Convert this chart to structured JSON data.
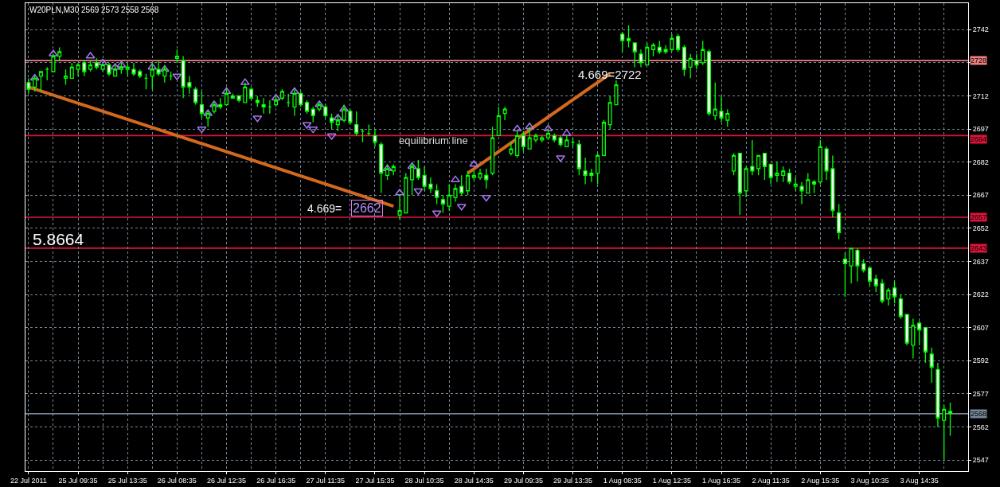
{
  "chart_data": {
    "type": "candlestick",
    "title": "W20PLN,M30 2569 2573 2558 2568",
    "categories": [
      "22 Jul 2011",
      null,
      null,
      null,
      null,
      null,
      null,
      null,
      "25 Jul 09:35",
      null,
      null,
      null,
      null,
      null,
      null,
      null,
      "25 Jul 13:35",
      null,
      null,
      null,
      null,
      null,
      null,
      null,
      "26 Jul 08:35",
      null,
      null,
      null,
      null,
      null,
      null,
      null,
      "26 Jul 12:35",
      null,
      null,
      null,
      null,
      null,
      null,
      null,
      "26 Jul 16:35",
      null,
      null,
      null,
      null,
      null,
      null,
      null,
      "27 Jul 11:35",
      null,
      null,
      null,
      null,
      null,
      null,
      null,
      "27 Jul 15:35",
      null,
      null,
      null,
      null,
      null,
      null,
      null,
      "28 Jul 10:35",
      null,
      null,
      null,
      null,
      null,
      null,
      null,
      "28 Jul 14:35",
      null,
      null,
      null,
      null,
      null,
      null,
      null,
      "29 Jul 09:35",
      null,
      null,
      null,
      null,
      null,
      null,
      null,
      "29 Jul 13:35",
      null,
      null,
      null,
      null,
      null,
      null,
      null,
      "1 Aug 08:35",
      null,
      null,
      null,
      null,
      null,
      null,
      null,
      "1 Aug 12:35",
      null,
      null,
      null,
      null,
      null,
      null,
      null,
      "1 Aug 16:35",
      null,
      null,
      null,
      null,
      null,
      null,
      null,
      "2 Aug 11:35",
      null,
      null,
      null,
      null,
      null,
      null,
      null,
      "2 Aug 15:35",
      null,
      null,
      null,
      null,
      null,
      null,
      null,
      "3 Aug 10:35",
      null,
      null,
      null,
      null,
      null,
      null,
      null,
      "3 Aug 14:35",
      null,
      null,
      null,
      null,
      null
    ],
    "ohlc": [
      [
        2718,
        2720,
        2713,
        2715
      ],
      [
        2716,
        2721,
        2714,
        2720
      ],
      [
        2721,
        2723,
        2714,
        2723
      ],
      [
        2724,
        2725,
        2719,
        2724
      ],
      [
        2723,
        2731,
        2723,
        2730
      ],
      [
        2730,
        2734,
        2728,
        2732
      ],
      [
        2720,
        2724,
        2717,
        2721
      ],
      [
        2720,
        2727,
        2720,
        2725
      ],
      [
        2724,
        2727,
        2721,
        2726
      ],
      [
        2727,
        2728,
        2721,
        2723
      ],
      [
        2724,
        2728,
        2723,
        2726
      ],
      [
        2727,
        2729,
        2724,
        2725
      ],
      [
        2724,
        2727,
        2723,
        2726
      ],
      [
        2726,
        2727,
        2721,
        2722
      ],
      [
        2721,
        2726,
        2721,
        2724
      ],
      [
        2724,
        2727,
        2722,
        2725
      ],
      [
        2724,
        2727,
        2721,
        2725
      ],
      [
        2724,
        2727,
        2721,
        2722
      ],
      [
        2723,
        2724,
        2720,
        2721
      ],
      [
        2720,
        2722,
        2715,
        2720
      ],
      [
        2721,
        2727,
        2715,
        2724
      ],
      [
        2724,
        2728,
        2721,
        2722
      ],
      [
        2721,
        2726,
        2718,
        2724
      ],
      [
        2721,
        2723,
        2719,
        2721
      ],
      [
        2729,
        2733,
        2727,
        2730
      ],
      [
        2728,
        2730,
        2711,
        2716
      ],
      [
        2718,
        2721,
        2713,
        2716
      ],
      [
        2715,
        2716,
        2708,
        2709
      ],
      [
        2708,
        2714,
        2702,
        2704
      ],
      [
        2702,
        2705,
        2698,
        2704
      ],
      [
        2705,
        2709,
        2704,
        2708
      ],
      [
        2708,
        2711,
        2706,
        2707
      ],
      [
        2708,
        2715,
        2708,
        2713
      ],
      [
        2712,
        2713,
        2711,
        2711
      ],
      [
        2712,
        2712,
        2709,
        2710
      ],
      [
        2709,
        2718,
        2709,
        2716
      ],
      [
        2715,
        2716,
        2710,
        2711
      ],
      [
        2710,
        2712,
        2707,
        2709
      ],
      [
        2708,
        2711,
        2704,
        2707
      ],
      [
        2707,
        2710,
        2704,
        2707
      ],
      [
        2708,
        2712,
        2707,
        2710
      ],
      [
        2711,
        2715,
        2710,
        2714
      ],
      [
        2709,
        2713,
        2707,
        2709
      ],
      [
        2707,
        2715,
        2703,
        2713
      ],
      [
        2713,
        2714,
        2707,
        2708
      ],
      [
        2709,
        2710,
        2704,
        2705
      ],
      [
        2706,
        2707,
        2700,
        2703
      ],
      [
        2706,
        2709,
        2705,
        2708
      ],
      [
        2707,
        2708,
        2702,
        2703
      ],
      [
        2702,
        2704,
        2697,
        2700
      ],
      [
        2699,
        2703,
        2696,
        2701
      ],
      [
        2701,
        2708,
        2700,
        2706
      ],
      [
        2705,
        2706,
        2699,
        2700
      ],
      [
        2699,
        2705,
        2694,
        2695
      ],
      [
        2696,
        2697,
        2691,
        2696
      ],
      [
        2695,
        2699,
        2694,
        2695
      ],
      [
        2694,
        2697,
        2689,
        2691
      ],
      [
        2690,
        2691,
        2668,
        2677
      ],
      [
        2676,
        2681,
        2674,
        2679
      ],
      [
        2678,
        2681,
        2676,
        2680
      ],
      [
        2658,
        2667,
        2656,
        2660
      ],
      [
        2659,
        2677,
        2659,
        2675
      ],
      [
        2674,
        2681,
        2667,
        2680
      ],
      [
        2679,
        2683,
        2674,
        2675
      ],
      [
        2676,
        2680,
        2669,
        2671
      ],
      [
        2672,
        2675,
        2668,
        2670
      ],
      [
        2669,
        2672,
        2663,
        2666
      ],
      [
        2665,
        2667,
        2659,
        2663
      ],
      [
        2662,
        2672,
        2660,
        2667
      ],
      [
        2666,
        2672,
        2664,
        2670
      ],
      [
        2671,
        2676,
        2667,
        2668
      ],
      [
        2669,
        2678,
        2667,
        2676
      ],
      [
        2675,
        2678,
        2674,
        2676
      ],
      [
        2675,
        2679,
        2674,
        2677
      ],
      [
        2676,
        2679,
        2670,
        2674
      ],
      [
        2677,
        2698,
        2676,
        2693
      ],
      [
        2694,
        2707,
        2694,
        2703
      ],
      [
        2704,
        2707,
        2701,
        2706
      ],
      [
        2686,
        2691,
        2685,
        2688
      ],
      [
        2685,
        2696,
        2684,
        2694
      ],
      [
        2694,
        2696,
        2687,
        2689
      ],
      [
        2688,
        2698,
        2688,
        2693
      ],
      [
        2692,
        2695,
        2691,
        2694
      ],
      [
        2692,
        2694,
        2691,
        2693
      ],
      [
        2693,
        2697,
        2692,
        2695
      ],
      [
        2694,
        2695,
        2691,
        2692
      ],
      [
        2693,
        2694,
        2689,
        2690
      ],
      [
        2689,
        2694,
        2689,
        2692
      ],
      [
        2691,
        2693,
        2689,
        2691
      ],
      [
        2690,
        2692,
        2676,
        2679
      ],
      [
        2678,
        2684,
        2672,
        2676
      ],
      [
        2677,
        2679,
        2673,
        2676
      ],
      [
        2677,
        2686,
        2672,
        2685
      ],
      [
        2685,
        2701,
        2685,
        2700
      ],
      [
        2699,
        2712,
        2697,
        2709
      ],
      [
        2708,
        2719,
        2708,
        2717
      ],
      [
        2740,
        2741,
        2732,
        2737
      ],
      [
        2738,
        2744,
        2734,
        2737
      ],
      [
        2736,
        2736,
        2725,
        2732
      ],
      [
        2731,
        2733,
        2725,
        2727
      ],
      [
        2726,
        2736,
        2726,
        2734
      ],
      [
        2733,
        2736,
        2730,
        2735
      ],
      [
        2734,
        2737,
        2731,
        2732
      ],
      [
        2733,
        2735,
        2731,
        2732
      ],
      [
        2733,
        2740,
        2732,
        2738
      ],
      [
        2739,
        2740,
        2732,
        2733
      ],
      [
        2734,
        2735,
        2721,
        2724
      ],
      [
        2725,
        2731,
        2720,
        2729
      ],
      [
        2728,
        2731,
        2724,
        2726
      ],
      [
        2727,
        2737,
        2726,
        2733
      ],
      [
        2732,
        2733,
        2703,
        2704
      ],
      [
        2703,
        2718,
        2701,
        2706
      ],
      [
        2705,
        2712,
        2700,
        2702
      ],
      [
        2701,
        2706,
        2698,
        2704
      ],
      [
        2678,
        2686,
        2676,
        2685
      ],
      [
        2686,
        2686,
        2658,
        2668
      ],
      [
        2669,
        2680,
        2666,
        2679
      ],
      [
        2680,
        2692,
        2676,
        2678
      ],
      [
        2679,
        2685,
        2676,
        2685
      ],
      [
        2686,
        2686,
        2674,
        2680
      ],
      [
        2681,
        2681,
        2672,
        2675
      ],
      [
        2676,
        2682,
        2673,
        2677
      ],
      [
        2676,
        2680,
        2673,
        2678
      ],
      [
        2677,
        2679,
        2672,
        2673
      ],
      [
        2671,
        2675,
        2669,
        2672
      ],
      [
        2671,
        2673,
        2663,
        2669
      ],
      [
        2668,
        2677,
        2668,
        2674
      ],
      [
        2673,
        2674,
        2668,
        2672
      ],
      [
        2673,
        2692,
        2672,
        2689
      ],
      [
        2688,
        2689,
        2674,
        2678
      ],
      [
        2679,
        2685,
        2657,
        2660
      ],
      [
        2659,
        2663,
        2647,
        2650
      ],
      [
        2638,
        2641,
        2621,
        2636
      ],
      [
        2635,
        2643,
        2627,
        2643
      ],
      [
        2642,
        2643,
        2628,
        2635
      ],
      [
        2636,
        2638,
        2632,
        2633
      ],
      [
        2634,
        2635,
        2626,
        2628
      ],
      [
        2629,
        2631,
        2623,
        2626
      ],
      [
        2627,
        2629,
        2618,
        2619
      ],
      [
        2620,
        2625,
        2617,
        2624
      ],
      [
        2625,
        2628,
        2618,
        2621
      ],
      [
        2620,
        2622,
        2611,
        2612
      ],
      [
        2613,
        2613,
        2599,
        2600
      ],
      [
        2599,
        2611,
        2593,
        2608
      ],
      [
        2609,
        2610,
        2599,
        2606
      ],
      [
        2607,
        2607,
        2591,
        2596
      ],
      [
        2595,
        2598,
        2582,
        2589
      ],
      [
        2588,
        2591,
        2562,
        2566
      ],
      [
        2565,
        2572,
        2547,
        2570
      ],
      [
        2569,
        2573,
        2558,
        2568
      ]
    ],
    "color": "#00ff00",
    "series": [
      {
        "type": "line",
        "color": "#d2691e",
        "values": [
          2716,
          null,
          null,
          null,
          null,
          null,
          null,
          null,
          null,
          null,
          null,
          null,
          null,
          null,
          null,
          null,
          null,
          null,
          null,
          null,
          null,
          null,
          null,
          null,
          null,
          null,
          null,
          null,
          null,
          null,
          null,
          null,
          null,
          null,
          null,
          null,
          null,
          null,
          null,
          null,
          null,
          null,
          null,
          null,
          null,
          null,
          null,
          null,
          null,
          null,
          null,
          null,
          null,
          null,
          null,
          null,
          null,
          null,
          null,
          2662,
          null,
          null,
          null,
          null,
          null,
          null,
          null,
          null,
          null,
          null,
          null,
          null,
          null,
          null,
          null,
          null,
          null,
          null,
          null,
          null,
          null,
          null,
          null,
          null,
          null,
          null,
          null,
          null,
          null,
          null,
          null,
          null,
          null,
          null,
          null,
          null,
          null,
          null,
          null,
          null,
          null,
          null,
          null,
          null,
          null,
          null,
          null,
          null,
          null,
          null,
          null,
          null,
          null,
          null,
          null,
          null,
          null,
          null,
          null,
          null,
          null,
          null,
          null,
          null,
          null,
          null,
          null,
          null,
          null,
          null,
          null,
          null,
          null,
          null,
          null,
          null,
          null,
          null,
          null,
          null,
          null,
          null,
          null,
          null,
          null,
          null,
          null,
          null,
          null,
          null
        ]
      },
      {
        "type": "line",
        "color": "#d2691e",
        "values": [
          null,
          null,
          null,
          null,
          null,
          null,
          null,
          null,
          null,
          null,
          null,
          null,
          null,
          null,
          null,
          null,
          null,
          null,
          null,
          null,
          null,
          null,
          null,
          null,
          null,
          null,
          null,
          null,
          null,
          null,
          null,
          null,
          null,
          null,
          null,
          null,
          null,
          null,
          null,
          null,
          null,
          null,
          null,
          null,
          null,
          null,
          null,
          null,
          null,
          null,
          null,
          null,
          null,
          null,
          null,
          null,
          null,
          null,
          null,
          null,
          null,
          null,
          null,
          null,
          null,
          null,
          null,
          null,
          null,
          null,
          null,
          2677,
          null,
          null,
          null,
          null,
          null,
          null,
          null,
          null,
          null,
          null,
          null,
          null,
          null,
          null,
          null,
          null,
          null,
          null,
          null,
          null,
          null,
          null,
          2722,
          null,
          null,
          null,
          null,
          null,
          null,
          null,
          null,
          null,
          null,
          null,
          null,
          null,
          null,
          null,
          null,
          null,
          null,
          null,
          null,
          null,
          null,
          null,
          null,
          null,
          null,
          null,
          null,
          null,
          null,
          null,
          null,
          null,
          null,
          null,
          null,
          null,
          null,
          null,
          null,
          null,
          null,
          null,
          null,
          null,
          null,
          null,
          null,
          null,
          null,
          null,
          null,
          null,
          null,
          null
        ]
      },
      {
        "type": "scatter",
        "marker": "triangle",
        "color": "#a678f0",
        "values": [
          null,
          2720,
          null,
          null,
          2731,
          null,
          null,
          null,
          null,
          null,
          2730,
          null,
          2727,
          null,
          2725,
          2726,
          null,
          null,
          null,
          null,
          2725,
          null,
          2724,
          null,
          null,
          null,
          null,
          null,
          null,
          2704,
          2708,
          null,
          2714,
          null,
          null,
          2718,
          null,
          null,
          null,
          null,
          2711,
          null,
          null,
          2714,
          null,
          null,
          null,
          2708,
          null,
          null,
          2702,
          2706,
          null,
          null,
          null,
          null,
          null,
          null,
          2679,
          null,
          2668,
          null,
          2680,
          null,
          null,
          null,
          null,
          null,
          null,
          2674,
          null,
          null,
          2681,
          null,
          null,
          null,
          null,
          null,
          null,
          2697,
          null,
          2698,
          null,
          null,
          2697,
          null,
          null,
          2695,
          null,
          null,
          null,
          null,
          null,
          null,
          null,
          null,
          null,
          null,
          null,
          null,
          null,
          null,
          null,
          null,
          null,
          null,
          null,
          null,
          null,
          null,
          null,
          null,
          null,
          null,
          null,
          null,
          null,
          null,
          null,
          null,
          null,
          null,
          null,
          null,
          null,
          null,
          null,
          null,
          null,
          null,
          null,
          null,
          null,
          null,
          null,
          null,
          null,
          null,
          null,
          null,
          null,
          null,
          null,
          null,
          null,
          null,
          null,
          null,
          null,
          null
        ]
      },
      {
        "type": "scatter",
        "marker": "triangle",
        "color": "#a678f0",
        "values": [
          null,
          null,
          null,
          null,
          null,
          null,
          null,
          null,
          null,
          null,
          null,
          null,
          null,
          null,
          null,
          null,
          null,
          null,
          null,
          null,
          null,
          null,
          null,
          null,
          2721,
          null,
          null,
          null,
          2697,
          null,
          null,
          null,
          null,
          null,
          null,
          null,
          null,
          2702,
          null,
          null,
          null,
          null,
          null,
          null,
          null,
          2699,
          2697,
          null,
          null,
          2694,
          null,
          null,
          null,
          null,
          null,
          null,
          null,
          null,
          null,
          null,
          null,
          null,
          null,
          2669,
          null,
          null,
          2659,
          null,
          null,
          null,
          2662,
          null,
          null,
          null,
          2666,
          null,
          null,
          null,
          null,
          null,
          null,
          null,
          null,
          null,
          null,
          null,
          2684,
          null,
          null,
          null,
          null,
          null,
          null,
          null,
          null,
          null,
          null,
          null,
          null,
          null,
          null,
          null,
          null,
          null,
          null,
          null,
          null,
          null,
          null,
          null,
          null,
          null,
          null,
          null,
          null,
          null,
          null,
          null,
          null,
          null,
          null,
          null,
          null,
          null,
          null,
          null,
          null,
          null,
          null,
          null,
          null,
          null,
          null,
          null,
          null,
          null,
          null,
          null,
          null,
          null,
          null,
          null,
          null,
          null,
          null,
          null,
          null,
          null,
          null,
          null
        ]
      }
    ],
    "ylim": [
      2542,
      2754
    ],
    "yticks": [
      2547,
      2562,
      2577,
      2592,
      2607,
      2622,
      2637,
      2652,
      2667,
      2682,
      2697,
      2712,
      {
        "value": 2727,
        "label": null
      },
      2742
    ],
    "grid": true,
    "ref_lines": [
      {
        "axis": "y",
        "value": 2728,
        "label": "2728",
        "color": "#f08080"
      },
      {
        "axis": "y",
        "value": 2694,
        "label": "2694",
        "color": "#dc143c"
      },
      {
        "axis": "y",
        "value": 2657,
        "label": "2657",
        "color": "#dc143c"
      },
      {
        "axis": "y",
        "value": 2643,
        "label": "2643",
        "color": "#dc143c"
      },
      {
        "axis": "y",
        "value": 2568,
        "label": "2568",
        "color": "#778899"
      }
    ],
    "annotations": [
      {
        "text": "equilibrium line",
        "y": 2694
      },
      "4.669=2722",
      "4.669=",
      "2662",
      "5.8664"
    ]
  }
}
